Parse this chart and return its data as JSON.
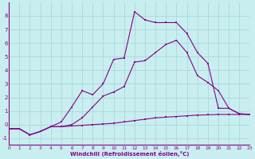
{
  "bg_color": "#c8eef0",
  "line_color": "#880088",
  "grid_color": "#a8d8d8",
  "xlabel": "Windchill (Refroidissement éolien,°C)",
  "xlim": [
    0,
    23
  ],
  "ylim": [
    -1.5,
    9.0
  ],
  "xticks": [
    0,
    1,
    2,
    3,
    4,
    5,
    6,
    7,
    8,
    9,
    10,
    11,
    12,
    13,
    14,
    15,
    16,
    17,
    18,
    19,
    20,
    21,
    22,
    23
  ],
  "yticks": [
    -1,
    0,
    1,
    2,
    3,
    4,
    5,
    6,
    7,
    8
  ],
  "line1_x": [
    0,
    1,
    2,
    3,
    4,
    5,
    6,
    7,
    8,
    9,
    10,
    11,
    12,
    13,
    14,
    15,
    16,
    17,
    18,
    19,
    20,
    21,
    22,
    23
  ],
  "line1_y": [
    -0.3,
    -0.3,
    -0.75,
    -0.5,
    -0.15,
    -0.15,
    -0.1,
    -0.05,
    0.0,
    0.05,
    0.1,
    0.2,
    0.3,
    0.4,
    0.5,
    0.55,
    0.6,
    0.65,
    0.7,
    0.72,
    0.75,
    0.75,
    0.75,
    0.75
  ],
  "line2_x": [
    0,
    1,
    2,
    3,
    4,
    5,
    6,
    7,
    8,
    9,
    10,
    11,
    12,
    13,
    14,
    15,
    16,
    17,
    18,
    19,
    20,
    21,
    22,
    23
  ],
  "line2_y": [
    -0.3,
    -0.3,
    -0.75,
    -0.5,
    -0.15,
    0.2,
    1.3,
    2.5,
    2.2,
    3.0,
    4.8,
    4.9,
    8.3,
    7.7,
    7.5,
    7.5,
    7.5,
    6.7,
    5.3,
    4.5,
    1.2,
    1.2,
    0.8,
    0.75
  ],
  "line3_x": [
    0,
    1,
    2,
    3,
    4,
    5,
    6,
    7,
    8,
    9,
    10,
    11,
    12,
    13,
    14,
    15,
    16,
    17,
    18,
    19,
    20,
    21,
    22,
    23
  ],
  "line3_y": [
    -0.3,
    -0.3,
    -0.75,
    -0.5,
    -0.15,
    -0.15,
    0.0,
    0.5,
    1.3,
    2.1,
    2.4,
    2.8,
    4.6,
    4.7,
    5.3,
    5.9,
    6.2,
    5.3,
    3.6,
    3.1,
    2.5,
    1.2,
    0.8,
    0.75
  ]
}
